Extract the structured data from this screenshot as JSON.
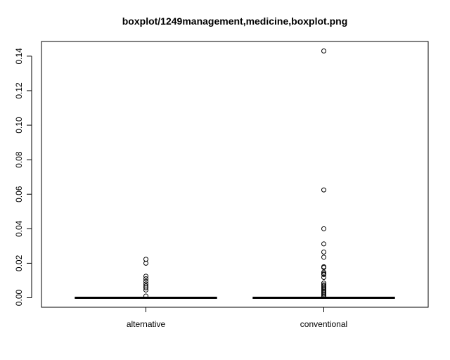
{
  "chart_data": {
    "type": "boxplot",
    "title": "boxplot/1249management,medicine,boxplot.png",
    "xlabel": "",
    "ylabel": "",
    "categories": [
      "alternative",
      "conventional"
    ],
    "ylim": [
      -0.0055,
      0.1485
    ],
    "y_ticks": [
      0.0,
      0.02,
      0.04,
      0.06,
      0.08,
      0.1,
      0.12,
      0.14
    ],
    "y_tick_labels": [
      "0.00",
      "0.02",
      "0.04",
      "0.06",
      "0.08",
      "0.10",
      "0.12",
      "0.14"
    ],
    "grid": false,
    "legend": "none",
    "boxes": [
      {
        "name": "alternative",
        "min": 0.0,
        "q1": 0.0,
        "median": 0.0,
        "q3": 0.0,
        "max": 0.0,
        "outliers": [
          0.0223,
          0.02,
          0.0125,
          0.011,
          0.0095,
          0.008,
          0.0068,
          0.0058,
          0.0045,
          0.001
        ]
      },
      {
        "name": "conventional",
        "min": 0.0,
        "q1": 0.0,
        "median": 0.0,
        "q3": 0.0,
        "max": 0.0,
        "outliers": [
          0.143,
          0.0625,
          0.04,
          0.0312,
          0.0265,
          0.0235,
          0.018,
          0.0175,
          0.0148,
          0.014,
          0.0135,
          0.0118,
          0.0085,
          0.0075,
          0.0068,
          0.006,
          0.0052,
          0.0045,
          0.0038,
          0.003,
          0.0022,
          0.0015,
          0.0008
        ]
      }
    ]
  }
}
